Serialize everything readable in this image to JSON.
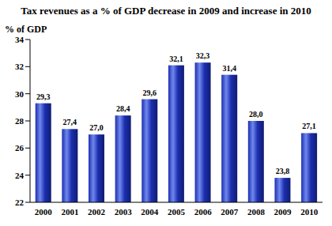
{
  "chart_data": {
    "type": "bar",
    "title": "Tax revenues as a % of GDP decrease in 2009 and increase in 2010",
    "y_label": "% of GDP",
    "categories": [
      "2000",
      "2001",
      "2002",
      "2003",
      "2004",
      "2005",
      "2006",
      "2007",
      "2008",
      "2009",
      "2010"
    ],
    "values": [
      29.3,
      27.4,
      27.0,
      28.4,
      29.6,
      32.1,
      32.3,
      31.4,
      28.0,
      23.8,
      27.1
    ],
    "value_labels": [
      "29,3",
      "27,4",
      "27,0",
      "28,4",
      "29,6",
      "32,1",
      "32,3",
      "31,4",
      "28,0",
      "23,8",
      "27,1"
    ],
    "color": "#1c2fb0",
    "ylim": [
      22,
      34
    ],
    "yticks": [
      22,
      24,
      26,
      28,
      30,
      32,
      34
    ],
    "data_labels": true,
    "grid": false
  }
}
